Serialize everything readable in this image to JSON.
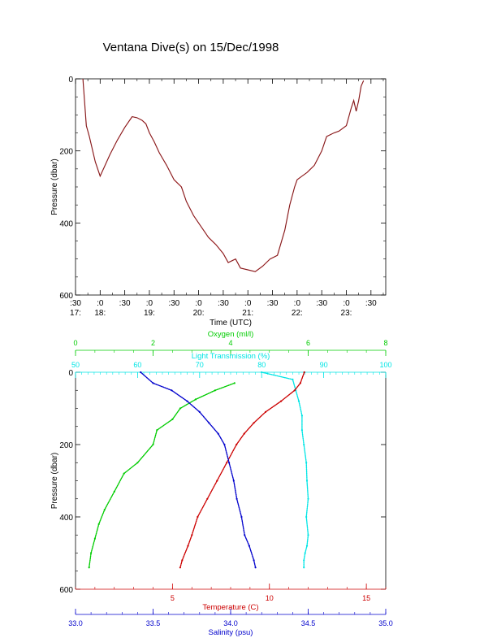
{
  "title": "Ventana Dive(s) on 15/Dec/1998",
  "colors": {
    "axis": "#000000",
    "dive_track": "#b0282a",
    "oxygen": "#00cc00",
    "light": "#00e5e5",
    "temperature": "#cc0000",
    "salinity": "#0000cc"
  },
  "chart_data": [
    {
      "type": "line",
      "title": "Ventana Dive(s) on 15/Dec/1998",
      "xlabel": "Time (UTC)",
      "ylabel": "Pressure (dbar)",
      "x_unit": "hours UTC",
      "xlim": [
        17.5,
        23.8
      ],
      "ylim": [
        600,
        0
      ],
      "yticks": [
        0,
        200,
        400,
        600
      ],
      "xticks": [
        {
          "top": ":30",
          "bottom": "17:"
        },
        {
          "top": ":0",
          "bottom": "18:"
        },
        {
          "top": ":30",
          "bottom": ""
        },
        {
          "top": ":0",
          "bottom": "19:"
        },
        {
          "top": ":30",
          "bottom": ""
        },
        {
          "top": ":0",
          "bottom": "20:"
        },
        {
          "top": ":30",
          "bottom": ""
        },
        {
          "top": ":0",
          "bottom": "21:"
        },
        {
          "top": ":30",
          "bottom": ""
        },
        {
          "top": ":0",
          "bottom": "22:"
        },
        {
          "top": ":30",
          "bottom": ""
        },
        {
          "top": ":0",
          "bottom": "23:"
        },
        {
          "top": ":30",
          "bottom": ""
        }
      ],
      "x": [
        17.65,
        17.72,
        17.78,
        17.9,
        18.0,
        18.1,
        18.2,
        18.35,
        18.5,
        18.65,
        18.75,
        18.85,
        18.93,
        19.0,
        19.1,
        19.2,
        19.35,
        19.5,
        19.65,
        19.75,
        19.9,
        20.05,
        20.2,
        20.35,
        20.5,
        20.6,
        20.75,
        20.85,
        21.0,
        21.15,
        21.3,
        21.45,
        21.6,
        21.75,
        21.85,
        21.95,
        22.0,
        22.1,
        22.2,
        22.35,
        22.5,
        22.6,
        22.75,
        22.85,
        23.0,
        23.1,
        23.15,
        23.2,
        23.25,
        23.3,
        23.35
      ],
      "y": [
        0,
        130,
        160,
        230,
        270,
        240,
        210,
        170,
        135,
        105,
        108,
        115,
        125,
        150,
        175,
        205,
        240,
        280,
        300,
        340,
        380,
        410,
        440,
        460,
        485,
        510,
        500,
        525,
        530,
        535,
        520,
        500,
        490,
        420,
        350,
        300,
        280,
        270,
        260,
        240,
        200,
        160,
        150,
        145,
        130,
        80,
        60,
        90,
        60,
        20,
        5
      ]
    },
    {
      "type": "scatter",
      "ylabel": "Pressure (dbar)",
      "ylim": [
        600,
        0
      ],
      "yticks": [
        0,
        200,
        400,
        600
      ],
      "series": [
        {
          "name": "Oxygen (ml/l)",
          "axis_label": "Oxygen (ml/l)",
          "axis_position": "top-outer",
          "xlim": [
            0,
            8
          ],
          "xticks": [
            0,
            2,
            4,
            6,
            8
          ],
          "x": [
            4.1,
            3.6,
            3.1,
            2.7,
            2.5,
            2.1,
            2.0,
            1.6,
            1.25,
            1.0,
            0.75,
            0.6,
            0.5,
            0.4,
            0.35
          ],
          "y": [
            30,
            50,
            75,
            100,
            130,
            160,
            200,
            250,
            280,
            330,
            380,
            420,
            460,
            500,
            540
          ]
        },
        {
          "name": "Light Transmission (%)",
          "axis_label": "Light Transmission (%)",
          "axis_position": "top-inner",
          "xlim": [
            50,
            100
          ],
          "xticks": [
            50,
            60,
            70,
            80,
            90,
            100
          ],
          "x": [
            80,
            85,
            85.5,
            86,
            86.5,
            86.5,
            86.8,
            87.2,
            87.3,
            87.5,
            87.2,
            87.5,
            87.3,
            87.0,
            86.8,
            86.8
          ],
          "y": [
            0,
            20,
            50,
            80,
            120,
            160,
            200,
            250,
            300,
            350,
            400,
            450,
            480,
            500,
            520,
            540
          ]
        },
        {
          "name": "Temperature (C)",
          "axis_label": "Temperature (C)",
          "axis_position": "bottom-inner",
          "xlim": [
            0,
            16
          ],
          "xticks": [
            5,
            10,
            15
          ],
          "x": [
            11.8,
            11.6,
            11.3,
            10.6,
            9.8,
            9.2,
            8.7,
            8.3,
            7.8,
            7.3,
            6.8,
            6.3,
            6.0,
            5.8,
            5.5,
            5.4
          ],
          "y": [
            0,
            30,
            50,
            80,
            110,
            140,
            170,
            200,
            250,
            300,
            350,
            400,
            450,
            480,
            520,
            540
          ]
        },
        {
          "name": "Salinity (psu)",
          "axis_label": "Salinity (psu)",
          "axis_position": "bottom-outer",
          "xlim": [
            33.0,
            35.0
          ],
          "xticks": [
            33.0,
            33.5,
            34.0,
            34.5,
            35.0
          ],
          "x": [
            33.42,
            33.5,
            33.62,
            33.72,
            33.8,
            33.86,
            33.92,
            33.96,
            33.99,
            34.02,
            34.04,
            34.07,
            34.09,
            34.12,
            34.15,
            34.16
          ],
          "y": [
            0,
            30,
            50,
            80,
            110,
            140,
            170,
            200,
            250,
            300,
            350,
            400,
            450,
            480,
            520,
            540
          ]
        }
      ]
    }
  ]
}
